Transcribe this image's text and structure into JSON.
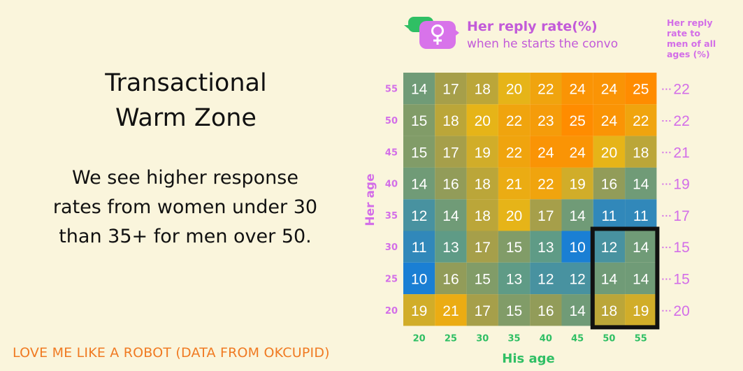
{
  "left_text": {
    "title_lines": [
      "Transactional",
      "Warm Zone"
    ],
    "body_lines": [
      "We see higher response",
      "rates from women under 30",
      "than 35+ for men over 50."
    ],
    "footer": "LOVE ME LIKE A ROBOT (DATA FROM OKCUPID)"
  },
  "legend": {
    "title": "Her reply rate(%)",
    "subtitle": "when he starts the convo",
    "side_header": [
      "Her reply",
      "rate to",
      "men of all",
      "ages (%)"
    ],
    "icon": "female-symbol-chat-icon"
  },
  "colors": {
    "background": "#faf5dc",
    "accent_pink": "#d36ee8",
    "accent_green": "#2fbf64",
    "footer_orange": "#f07a22",
    "highlight_box": "#111111"
  },
  "chart_data": {
    "type": "heatmap",
    "xlabel": "His age",
    "ylabel": "Her age",
    "x_categories": [
      "20",
      "25",
      "30",
      "35",
      "40",
      "45",
      "50",
      "55"
    ],
    "y_categories": [
      "55",
      "50",
      "45",
      "40",
      "35",
      "30",
      "25",
      "20"
    ],
    "values": [
      [
        14,
        17,
        18,
        20,
        22,
        24,
        24,
        25
      ],
      [
        15,
        18,
        20,
        22,
        23,
        25,
        24,
        22
      ],
      [
        15,
        17,
        19,
        22,
        24,
        24,
        20,
        18
      ],
      [
        14,
        16,
        18,
        21,
        22,
        19,
        16,
        14
      ],
      [
        12,
        14,
        18,
        20,
        17,
        14,
        11,
        11
      ],
      [
        11,
        13,
        17,
        15,
        13,
        10,
        12,
        14
      ],
      [
        10,
        16,
        15,
        13,
        12,
        12,
        14,
        14
      ],
      [
        19,
        21,
        17,
        15,
        16,
        14,
        18,
        19
      ]
    ],
    "row_totals": [
      "22",
      "22",
      "21",
      "19",
      "17",
      "15",
      "15",
      "20"
    ],
    "highlight": {
      "x_from": "50",
      "x_to": "55",
      "y_from": "30",
      "y_to": "20"
    },
    "color_scale": {
      "low": "#1a7fd4",
      "mid_low": "#5f9b86",
      "mid": "#9b9c52",
      "mid_high": "#e6b418",
      "high": "#ff8c00"
    }
  }
}
